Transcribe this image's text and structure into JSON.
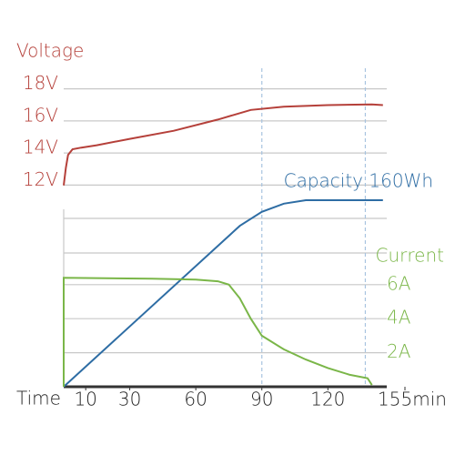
{
  "chart_data": {
    "type": "line",
    "xlabel": "Time",
    "xlim": [
      0,
      155
    ],
    "xticks": [
      10,
      30,
      60,
      90,
      120,
      {
        "value": 155,
        "label": "155min"
      }
    ],
    "vlines": [
      90,
      137
    ],
    "ylim": [
      11,
      19
    ],
    "yticks": [
      {
        "value": 18,
        "label": "18V"
      },
      {
        "value": 16,
        "label": "16V"
      },
      {
        "value": 14,
        "label": "14V"
      },
      {
        "value": 12,
        "label": "12V"
      }
    ],
    "y2lim": [
      0,
      10
    ],
    "y2ticks": [
      {
        "value": 6,
        "label": "6A"
      },
      {
        "value": 4,
        "label": "4A"
      },
      {
        "value": 2,
        "label": "2A"
      }
    ],
    "y3lim": [
      0,
      160
    ],
    "series": [
      {
        "name": "Voltage",
        "color": "#b5403a",
        "axis": "y",
        "x": [
          0,
          1,
          2,
          4,
          8,
          15,
          30,
          50,
          70,
          85,
          100,
          120,
          140,
          145
        ],
        "values": [
          11.7,
          12.8,
          13.6,
          13.95,
          14.05,
          14.2,
          14.6,
          15.1,
          15.8,
          16.4,
          16.6,
          16.7,
          16.75,
          16.7
        ]
      },
      {
        "name": "Capacity 160Wh",
        "color": "#2e6da4",
        "axis": "y3",
        "x": [
          0,
          80,
          90,
          100,
          110,
          125,
          145
        ],
        "values": [
          0,
          138,
          150,
          157,
          160,
          160,
          160
        ]
      },
      {
        "name": "Current",
        "color": "#7ab648",
        "axis": "y2",
        "x": [
          0,
          0,
          40,
          60,
          70,
          75,
          80,
          85,
          90,
          100,
          110,
          120,
          130,
          138,
          140
        ],
        "values": [
          0,
          6.4,
          6.35,
          6.3,
          6.2,
          6.0,
          5.2,
          4.0,
          3.0,
          2.2,
          1.6,
          1.1,
          0.7,
          0.5,
          0.1
        ]
      }
    ]
  }
}
